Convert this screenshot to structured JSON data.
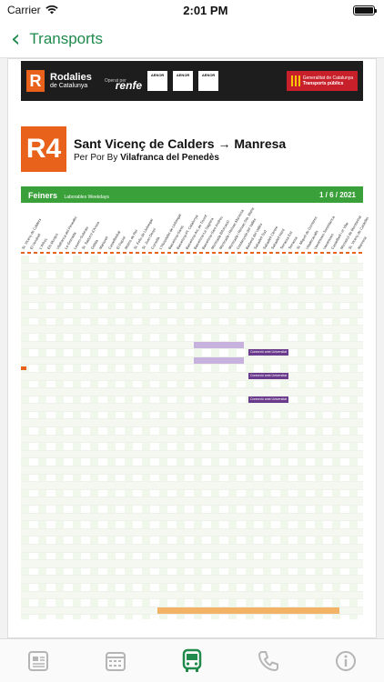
{
  "status": {
    "carrier": "Carrier",
    "time": "2:01 PM",
    "battery_level": 1.0
  },
  "nav": {
    "title": "Transports",
    "back_icon": "chevron-left-icon"
  },
  "pdf": {
    "brand_1": "Rodalies",
    "brand_2": "de Catalunya",
    "operated_by": "Operat per",
    "operator": "renfe",
    "cert_1": "AENOR",
    "cert_2": "AENOR",
    "cert_3": "AENOR",
    "gen_1": "Generalitat de Catalunya",
    "gen_2": "Transports públics",
    "line": "R4",
    "route_title": "Sant Vicenç de Calders → Manresa",
    "route_via_prefix": "Per Por By",
    "route_via": "Vilafranca del Penedès",
    "day_type": "Feiners",
    "day_type_sub": "Laborables Weekdays",
    "date": "1 / 6 / 2021",
    "stations": [
      "St. Vicenç de Calders",
      "El Vendrell",
      "L'Arboç",
      "Els Monjos",
      "Vilafranca del Penedès",
      "La Granada",
      "Lavern-Subirats",
      "St. Sadurní d'Anoia",
      "Gelida",
      "Martorell",
      "Castellbisbal",
      "El Papiol",
      "Molins de Rei",
      "St. Feliu de Llobregat",
      "St. Joan Despí",
      "Cornellà",
      "L'Hospitalet de Llobregat",
      "Barcelona-Sants",
      "Barcelona-Pl. Catalunya",
      "Barcelona-Arc de Triomf",
      "Barcelona-La Sagrera",
      "Barcelona-Sant Andreu",
      "Montcada Bifurcació",
      "Montcada i Reixac-Manresa",
      "Montcada i Reixac-Sta. Maria",
      "Cerdanyola del Vallès",
      "Barberà del Vallès",
      "Sabadell Sud",
      "Sabadell Centre",
      "Sabadell Nord",
      "Terrassa Est",
      "Terrassa",
      "St. Miquel de Gonteres",
      "Viladecavalls",
      "Vacarisses-Torreblanca",
      "Vacarisses",
      "Castellbell i el Vilar",
      "Monistrol de Montserrat",
      "St. Vicenç de Castellet",
      "Manresa"
    ],
    "legend_link": "Connexió amb Universitat"
  },
  "tabs": [
    {
      "name": "tab-news",
      "icon": "newspaper-icon"
    },
    {
      "name": "tab-schedule",
      "icon": "calendar-icon"
    },
    {
      "name": "tab-transport",
      "icon": "bus-icon",
      "active": true
    },
    {
      "name": "tab-phone",
      "icon": "phone-icon"
    },
    {
      "name": "tab-info",
      "icon": "info-icon"
    }
  ],
  "colors": {
    "accent": "#1f8a4c",
    "line_orange": "#e8621b",
    "band_green": "#3aa03a",
    "highlight_purple": "#6a3a8c"
  }
}
